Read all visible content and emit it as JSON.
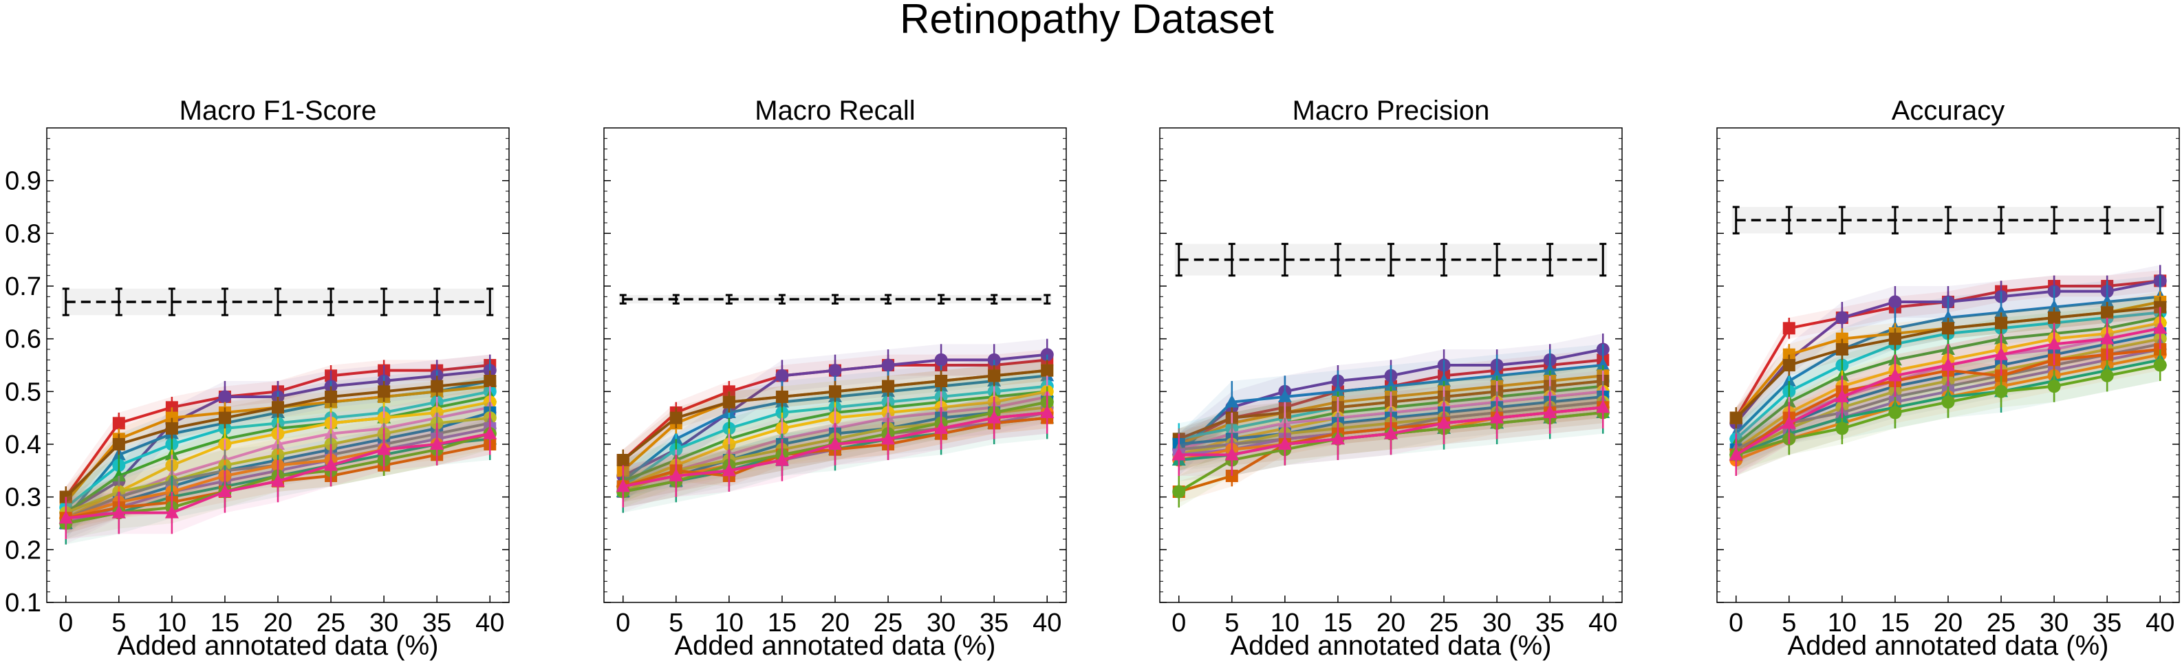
{
  "figure": {
    "title": "Retinopathy Dataset"
  },
  "colors": {
    "reference_line": "#000000",
    "reference_band": "#e6e6e6",
    "palette": [
      "#d62728",
      "#6a3d9a",
      "#1f77b4",
      "#e08a00",
      "#17becf",
      "#2ca02c",
      "#8c510a",
      "#f0c000",
      "#e377c2",
      "#0072b2",
      "#bcbd22",
      "#7f7f7f",
      "#9467bd",
      "#ff7f0e",
      "#1b9e77",
      "#d95f02",
      "#66a61e",
      "#e7298a"
    ]
  },
  "chart_data": [
    {
      "type": "line",
      "title": "Macro F1-Score",
      "xlabel": "Added annotated data (%)",
      "ylabel": "",
      "x": [
        0,
        5,
        10,
        15,
        20,
        25,
        30,
        35,
        40
      ],
      "xticks": [
        "0",
        "5",
        "10",
        "15",
        "20",
        "25",
        "30",
        "35",
        "40"
      ],
      "ylim": [
        0.1,
        1.0
      ],
      "yticks": [
        "0.1",
        "0.2",
        "0.3",
        "0.4",
        "0.5",
        "0.6",
        "0.7",
        "0.8",
        "0.9"
      ],
      "reference": {
        "value": 0.67,
        "err": 0.025
      },
      "series": [
        {
          "values": [
            0.3,
            0.44,
            0.47,
            0.49,
            0.5,
            0.53,
            0.54,
            0.54,
            0.55
          ]
        },
        {
          "values": [
            0.27,
            0.33,
            0.44,
            0.49,
            0.49,
            0.51,
            0.52,
            0.53,
            0.54
          ]
        },
        {
          "values": [
            0.26,
            0.38,
            0.42,
            0.44,
            0.46,
            0.48,
            0.49,
            0.5,
            0.52
          ]
        },
        {
          "values": [
            0.29,
            0.41,
            0.45,
            0.46,
            0.47,
            0.48,
            0.49,
            0.5,
            0.51
          ]
        },
        {
          "values": [
            0.28,
            0.36,
            0.4,
            0.43,
            0.44,
            0.45,
            0.46,
            0.48,
            0.5
          ]
        },
        {
          "values": [
            0.27,
            0.34,
            0.38,
            0.41,
            0.43,
            0.44,
            0.45,
            0.47,
            0.49
          ]
        },
        {
          "values": [
            0.3,
            0.4,
            0.43,
            0.45,
            0.47,
            0.49,
            0.5,
            0.51,
            0.52
          ]
        },
        {
          "values": [
            0.26,
            0.31,
            0.36,
            0.4,
            0.42,
            0.44,
            0.45,
            0.46,
            0.48
          ]
        },
        {
          "values": [
            0.25,
            0.3,
            0.34,
            0.37,
            0.4,
            0.42,
            0.43,
            0.45,
            0.47
          ]
        },
        {
          "values": [
            0.26,
            0.29,
            0.32,
            0.35,
            0.37,
            0.39,
            0.41,
            0.43,
            0.46
          ]
        },
        {
          "values": [
            0.27,
            0.31,
            0.33,
            0.36,
            0.38,
            0.4,
            0.42,
            0.44,
            0.45
          ]
        },
        {
          "values": [
            0.26,
            0.3,
            0.33,
            0.35,
            0.36,
            0.38,
            0.4,
            0.42,
            0.44
          ]
        },
        {
          "values": [
            0.25,
            0.28,
            0.31,
            0.33,
            0.35,
            0.37,
            0.39,
            0.41,
            0.43
          ]
        },
        {
          "values": [
            0.26,
            0.29,
            0.31,
            0.34,
            0.36,
            0.37,
            0.39,
            0.4,
            0.42
          ]
        },
        {
          "values": [
            0.25,
            0.27,
            0.3,
            0.32,
            0.34,
            0.36,
            0.38,
            0.4,
            0.41
          ]
        },
        {
          "values": [
            0.26,
            0.28,
            0.29,
            0.31,
            0.33,
            0.34,
            0.36,
            0.38,
            0.4
          ]
        },
        {
          "values": [
            0.25,
            0.27,
            0.28,
            0.31,
            0.34,
            0.35,
            0.37,
            0.39,
            0.42
          ]
        },
        {
          "values": [
            0.26,
            0.27,
            0.27,
            0.31,
            0.33,
            0.36,
            0.39,
            0.4,
            0.42
          ]
        }
      ]
    },
    {
      "type": "line",
      "title": "Macro Recall",
      "xlabel": "Added annotated data (%)",
      "ylabel": "",
      "x": [
        0,
        5,
        10,
        15,
        20,
        25,
        30,
        35,
        40
      ],
      "xticks": [
        "0",
        "5",
        "10",
        "15",
        "20",
        "25",
        "30",
        "35",
        "40"
      ],
      "ylim": [
        0.1,
        1.0
      ],
      "yticks": [],
      "reference": {
        "value": 0.675,
        "err": 0.008
      },
      "series": [
        {
          "values": [
            0.37,
            0.46,
            0.5,
            0.53,
            0.54,
            0.55,
            0.55,
            0.55,
            0.56
          ]
        },
        {
          "values": [
            0.34,
            0.39,
            0.46,
            0.53,
            0.54,
            0.55,
            0.56,
            0.56,
            0.57
          ]
        },
        {
          "values": [
            0.33,
            0.41,
            0.46,
            0.48,
            0.49,
            0.5,
            0.51,
            0.52,
            0.53
          ]
        },
        {
          "values": [
            0.35,
            0.44,
            0.48,
            0.49,
            0.5,
            0.51,
            0.52,
            0.53,
            0.54
          ]
        },
        {
          "values": [
            0.32,
            0.39,
            0.43,
            0.46,
            0.47,
            0.48,
            0.49,
            0.5,
            0.51
          ]
        },
        {
          "values": [
            0.33,
            0.37,
            0.41,
            0.44,
            0.46,
            0.47,
            0.48,
            0.49,
            0.5
          ]
        },
        {
          "values": [
            0.37,
            0.45,
            0.48,
            0.49,
            0.5,
            0.51,
            0.52,
            0.53,
            0.54
          ]
        },
        {
          "values": [
            0.32,
            0.36,
            0.4,
            0.43,
            0.45,
            0.46,
            0.47,
            0.48,
            0.5
          ]
        },
        {
          "values": [
            0.31,
            0.35,
            0.38,
            0.41,
            0.43,
            0.45,
            0.46,
            0.47,
            0.49
          ]
        },
        {
          "values": [
            0.32,
            0.34,
            0.37,
            0.4,
            0.42,
            0.43,
            0.45,
            0.46,
            0.48
          ]
        },
        {
          "values": [
            0.31,
            0.35,
            0.37,
            0.39,
            0.41,
            0.43,
            0.44,
            0.46,
            0.47
          ]
        },
        {
          "values": [
            0.32,
            0.34,
            0.36,
            0.38,
            0.4,
            0.42,
            0.43,
            0.45,
            0.46
          ]
        },
        {
          "values": [
            0.31,
            0.33,
            0.35,
            0.37,
            0.39,
            0.41,
            0.43,
            0.44,
            0.46
          ]
        },
        {
          "values": [
            0.32,
            0.34,
            0.36,
            0.38,
            0.4,
            0.41,
            0.43,
            0.45,
            0.46
          ]
        },
        {
          "values": [
            0.31,
            0.33,
            0.35,
            0.38,
            0.39,
            0.41,
            0.42,
            0.44,
            0.45
          ]
        },
        {
          "values": [
            0.32,
            0.35,
            0.34,
            0.38,
            0.39,
            0.4,
            0.42,
            0.44,
            0.45
          ]
        },
        {
          "values": [
            0.31,
            0.33,
            0.36,
            0.38,
            0.4,
            0.42,
            0.44,
            0.46,
            0.48
          ]
        },
        {
          "values": [
            0.32,
            0.34,
            0.35,
            0.37,
            0.4,
            0.41,
            0.43,
            0.45,
            0.46
          ]
        }
      ]
    },
    {
      "type": "line",
      "title": "Macro Precision",
      "xlabel": "Added annotated data (%)",
      "ylabel": "",
      "x": [
        0,
        5,
        10,
        15,
        20,
        25,
        30,
        35,
        40
      ],
      "xticks": [
        "0",
        "5",
        "10",
        "15",
        "20",
        "25",
        "30",
        "35",
        "40"
      ],
      "ylim": [
        0.1,
        1.0
      ],
      "yticks": [],
      "reference": {
        "value": 0.75,
        "err": 0.03
      },
      "series": [
        {
          "values": [
            0.4,
            0.45,
            0.47,
            0.5,
            0.51,
            0.53,
            0.54,
            0.55,
            0.56
          ]
        },
        {
          "values": [
            0.39,
            0.47,
            0.5,
            0.52,
            0.53,
            0.55,
            0.55,
            0.56,
            0.58
          ]
        },
        {
          "values": [
            0.38,
            0.48,
            0.49,
            0.5,
            0.51,
            0.52,
            0.53,
            0.54,
            0.55
          ]
        },
        {
          "values": [
            0.4,
            0.44,
            0.46,
            0.48,
            0.49,
            0.5,
            0.51,
            0.52,
            0.53
          ]
        },
        {
          "values": [
            0.41,
            0.43,
            0.45,
            0.47,
            0.48,
            0.49,
            0.5,
            0.51,
            0.52
          ]
        },
        {
          "values": [
            0.39,
            0.42,
            0.44,
            0.46,
            0.47,
            0.48,
            0.49,
            0.5,
            0.51
          ]
        },
        {
          "values": [
            0.41,
            0.45,
            0.46,
            0.47,
            0.48,
            0.49,
            0.5,
            0.51,
            0.52
          ]
        },
        {
          "values": [
            0.38,
            0.41,
            0.43,
            0.45,
            0.46,
            0.47,
            0.48,
            0.49,
            0.5
          ]
        },
        {
          "values": [
            0.39,
            0.42,
            0.44,
            0.45,
            0.46,
            0.47,
            0.48,
            0.49,
            0.5
          ]
        },
        {
          "values": [
            0.4,
            0.41,
            0.42,
            0.44,
            0.45,
            0.46,
            0.47,
            0.48,
            0.49
          ]
        },
        {
          "values": [
            0.38,
            0.4,
            0.42,
            0.43,
            0.44,
            0.45,
            0.46,
            0.47,
            0.48
          ]
        },
        {
          "values": [
            0.39,
            0.4,
            0.41,
            0.42,
            0.43,
            0.45,
            0.46,
            0.47,
            0.48
          ]
        },
        {
          "values": [
            0.38,
            0.39,
            0.41,
            0.42,
            0.43,
            0.44,
            0.45,
            0.46,
            0.47
          ]
        },
        {
          "values": [
            0.37,
            0.39,
            0.4,
            0.41,
            0.42,
            0.43,
            0.45,
            0.46,
            0.47
          ]
        },
        {
          "values": [
            0.37,
            0.38,
            0.4,
            0.41,
            0.42,
            0.43,
            0.44,
            0.45,
            0.46
          ]
        },
        {
          "values": [
            0.31,
            0.34,
            0.4,
            0.42,
            0.43,
            0.44,
            0.45,
            0.46,
            0.47
          ]
        },
        {
          "values": [
            0.31,
            0.37,
            0.39,
            0.41,
            0.42,
            0.43,
            0.44,
            0.45,
            0.46
          ]
        },
        {
          "values": [
            0.38,
            0.38,
            0.4,
            0.41,
            0.42,
            0.44,
            0.45,
            0.46,
            0.47
          ]
        }
      ]
    },
    {
      "type": "line",
      "title": "Accuracy",
      "xlabel": "Added annotated data (%)",
      "ylabel": "",
      "x": [
        0,
        5,
        10,
        15,
        20,
        25,
        30,
        35,
        40
      ],
      "xticks": [
        "0",
        "5",
        "10",
        "15",
        "20",
        "25",
        "30",
        "35",
        "40"
      ],
      "ylim": [
        0.1,
        1.0
      ],
      "yticks": [],
      "reference": {
        "value": 0.825,
        "err": 0.025
      },
      "series": [
        {
          "values": [
            0.45,
            0.62,
            0.64,
            0.66,
            0.67,
            0.69,
            0.7,
            0.7,
            0.71
          ]
        },
        {
          "values": [
            0.44,
            0.56,
            0.64,
            0.67,
            0.67,
            0.68,
            0.69,
            0.69,
            0.71
          ]
        },
        {
          "values": [
            0.42,
            0.52,
            0.58,
            0.62,
            0.64,
            0.65,
            0.66,
            0.67,
            0.68
          ]
        },
        {
          "values": [
            0.45,
            0.57,
            0.6,
            0.61,
            0.62,
            0.63,
            0.64,
            0.65,
            0.67
          ]
        },
        {
          "values": [
            0.41,
            0.5,
            0.55,
            0.59,
            0.61,
            0.62,
            0.63,
            0.64,
            0.65
          ]
        },
        {
          "values": [
            0.4,
            0.48,
            0.53,
            0.56,
            0.58,
            0.6,
            0.61,
            0.62,
            0.64
          ]
        },
        {
          "values": [
            0.45,
            0.55,
            0.58,
            0.6,
            0.62,
            0.63,
            0.64,
            0.65,
            0.66
          ]
        },
        {
          "values": [
            0.39,
            0.46,
            0.51,
            0.54,
            0.56,
            0.58,
            0.6,
            0.61,
            0.63
          ]
        },
        {
          "values": [
            0.38,
            0.45,
            0.49,
            0.52,
            0.55,
            0.57,
            0.58,
            0.6,
            0.62
          ]
        },
        {
          "values": [
            0.39,
            0.44,
            0.48,
            0.51,
            0.53,
            0.55,
            0.57,
            0.59,
            0.61
          ]
        },
        {
          "values": [
            0.38,
            0.43,
            0.47,
            0.5,
            0.52,
            0.54,
            0.56,
            0.58,
            0.6
          ]
        },
        {
          "values": [
            0.39,
            0.44,
            0.46,
            0.49,
            0.51,
            0.53,
            0.55,
            0.57,
            0.59
          ]
        },
        {
          "values": [
            0.38,
            0.42,
            0.45,
            0.48,
            0.5,
            0.52,
            0.54,
            0.56,
            0.58
          ]
        },
        {
          "values": [
            0.37,
            0.41,
            0.44,
            0.47,
            0.49,
            0.51,
            0.53,
            0.55,
            0.57
          ]
        },
        {
          "values": [
            0.38,
            0.42,
            0.45,
            0.47,
            0.49,
            0.5,
            0.52,
            0.54,
            0.56
          ]
        },
        {
          "values": [
            0.38,
            0.45,
            0.5,
            0.52,
            0.54,
            0.53,
            0.56,
            0.57,
            0.58
          ]
        },
        {
          "values": [
            0.38,
            0.41,
            0.43,
            0.46,
            0.48,
            0.5,
            0.51,
            0.53,
            0.55
          ]
        },
        {
          "values": [
            0.38,
            0.44,
            0.49,
            0.53,
            0.55,
            0.57,
            0.59,
            0.6,
            0.62
          ]
        }
      ]
    }
  ]
}
